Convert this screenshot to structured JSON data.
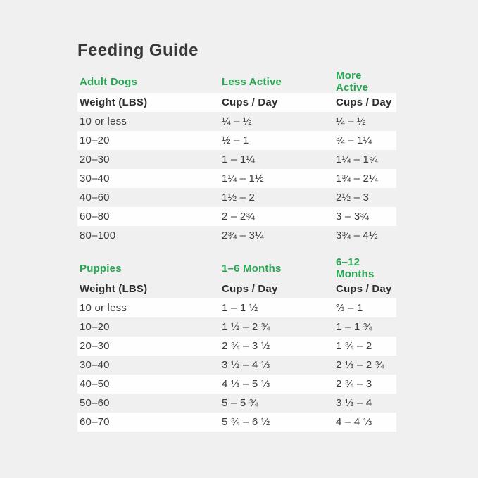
{
  "title": "Feeding Guide",
  "colors": {
    "accent_green": "#28a652",
    "text_dark": "#3a3a3a",
    "page_background": "#f0f0f1",
    "row_stripe_white": "#fefefe"
  },
  "chart_data": [
    {
      "type": "table",
      "title": "Adult Dogs",
      "group_headers": [
        "Adult Dogs",
        "Less Active",
        "More Active"
      ],
      "column_headers": [
        "Weight (LBS)",
        "Cups / Day",
        "Cups / Day"
      ],
      "rows": [
        [
          "10 or less",
          "¼ – ½",
          "¼ – ½"
        ],
        [
          "10–20",
          "½ – 1",
          "¾ – 1¼"
        ],
        [
          "20–30",
          "1 – 1¼",
          "1¼ – 1¾"
        ],
        [
          "30–40",
          "1¼ – 1½",
          "1¾ – 2¼"
        ],
        [
          "40–60",
          "1½ – 2",
          "2½ – 3"
        ],
        [
          "60–80",
          "2 – 2¾",
          "3 – 3¾"
        ],
        [
          "80–100",
          "2¾ – 3¼",
          "3¾ – 4½"
        ]
      ]
    },
    {
      "type": "table",
      "title": "Puppies",
      "group_headers": [
        "Puppies",
        "1–6 Months",
        "6–12 Months"
      ],
      "column_headers": [
        "Weight (LBS)",
        "Cups / Day",
        "Cups / Day"
      ],
      "rows": [
        [
          "10 or less",
          "1 – 1 ½",
          "⅔ – 1"
        ],
        [
          "10–20",
          "1 ½ – 2 ¾",
          "1 – 1 ¾"
        ],
        [
          "20–30",
          "2 ¾ – 3 ½",
          "1 ¾ – 2"
        ],
        [
          "30–40",
          "3 ½ – 4 ⅓",
          "2 ⅓ – 2 ¾"
        ],
        [
          "40–50",
          "4 ⅓ – 5 ⅓",
          "2 ¾ – 3"
        ],
        [
          "50–60",
          "5 – 5 ¾",
          "3 ⅓ – 4"
        ],
        [
          "60–70",
          "5 ¾ – 6 ½",
          "4 – 4 ⅓"
        ]
      ]
    }
  ]
}
